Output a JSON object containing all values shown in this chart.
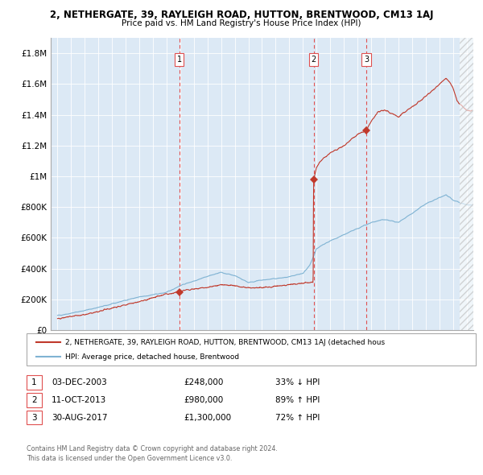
{
  "title": "2, NETHERGATE, 39, RAYLEIGH ROAD, HUTTON, BRENTWOOD, CM13 1AJ",
  "subtitle": "Price paid vs. HM Land Registry's House Price Index (HPI)",
  "hpi_label": "HPI: Average price, detached house, Brentwood",
  "property_label": "2, NETHERGATE, 39, RAYLEIGH ROAD, HUTTON, BRENTWOOD, CM13 1AJ (detached hous",
  "sale_dates": [
    "03-DEC-2003",
    "11-OCT-2013",
    "30-AUG-2017"
  ],
  "sale_prices": [
    248000,
    980000,
    1300000
  ],
  "sale_price_labels": [
    "£248,000",
    "£980,000",
    "£1,300,000"
  ],
  "sale_hpi_pct": [
    "33% ↓ HPI",
    "89% ↑ HPI",
    "72% ↑ HPI"
  ],
  "sale_years_approx": [
    2003.92,
    2013.78,
    2017.66
  ],
  "hpi_color": "#7fb3d3",
  "property_color": "#c0392b",
  "dashed_line_color": "#e05050",
  "plot_bg_color": "#dce9f5",
  "ylim": [
    0,
    1900000
  ],
  "yticks": [
    0,
    200000,
    400000,
    600000,
    800000,
    1000000,
    1200000,
    1400000,
    1600000,
    1800000
  ],
  "ytick_labels": [
    "£0",
    "£200K",
    "£400K",
    "£600K",
    "£800K",
    "£1M",
    "£1.2M",
    "£1.4M",
    "£1.6M",
    "£1.8M"
  ],
  "xlim_start": 1994.5,
  "xlim_end": 2025.5,
  "xticks": [
    1995,
    1996,
    1997,
    1998,
    1999,
    2000,
    2001,
    2002,
    2003,
    2004,
    2005,
    2006,
    2007,
    2008,
    2009,
    2010,
    2011,
    2012,
    2013,
    2014,
    2015,
    2016,
    2017,
    2018,
    2019,
    2020,
    2021,
    2022,
    2023,
    2024,
    2025
  ],
  "hatch_start": 2024.5,
  "footer1": "Contains HM Land Registry data © Crown copyright and database right 2024.",
  "footer2": "This data is licensed under the Open Government Licence v3.0."
}
